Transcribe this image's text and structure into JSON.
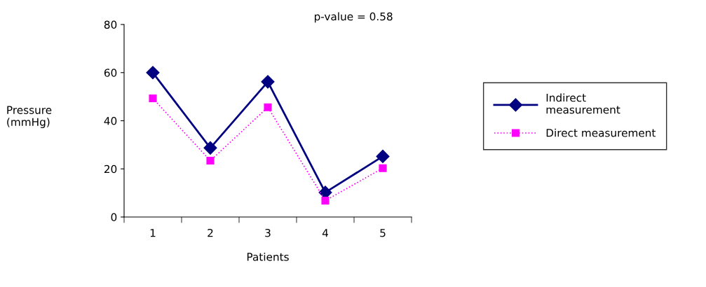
{
  "chart_data": {
    "type": "line",
    "xlabel": "Patients",
    "ylabel": "Pressure\n(mmHg)",
    "categories": [
      "1",
      "2",
      "3",
      "4",
      "5"
    ],
    "series": [
      {
        "name": "Indirect\nmeasurement",
        "color": "#000080",
        "marker": "diamond",
        "line_style": "solid",
        "values": [
          60,
          28.7,
          56.2,
          10.2,
          25.2
        ]
      },
      {
        "name": "Direct measurement",
        "color": "#ff00ff",
        "marker": "square",
        "line_style": "dotted",
        "values": [
          49.3,
          23.4,
          45.6,
          6.8,
          20.3
        ]
      }
    ],
    "ylim": [
      0,
      80
    ],
    "yticks": [
      0,
      20,
      40,
      60,
      80
    ],
    "grid": false,
    "legend": "right",
    "annotations": [
      "p-value = 0.58"
    ]
  }
}
